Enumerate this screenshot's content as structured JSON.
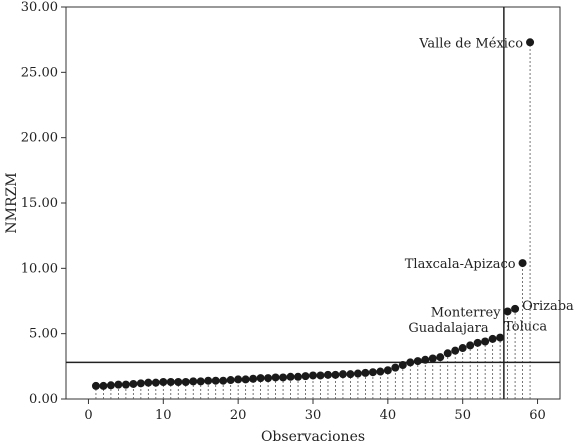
{
  "chart_data": {
    "type": "scatter",
    "subtype": "dot-plot-with-drop-lines",
    "xlabel": "Observaciones",
    "ylabel": "NMRZM",
    "xlim": [
      -3,
      63
    ],
    "ylim": [
      0,
      30
    ],
    "xticks": [
      0,
      10,
      20,
      30,
      40,
      50,
      60
    ],
    "yticks": [
      0,
      5,
      10,
      15,
      20,
      25,
      30
    ],
    "y_tick_labels": [
      "0.00",
      "5.00",
      "10.00",
      "15.00",
      "20.00",
      "25.00",
      "30.00"
    ],
    "x_tick_labels": [
      "0",
      "10",
      "20",
      "30",
      "40",
      "50",
      "60"
    ],
    "grid": false,
    "reference_lines": {
      "horizontal_y": 2.8,
      "vertical_x": 55.5
    },
    "x": [
      1,
      2,
      3,
      4,
      5,
      6,
      7,
      8,
      9,
      10,
      11,
      12,
      13,
      14,
      15,
      16,
      17,
      18,
      19,
      20,
      21,
      22,
      23,
      24,
      25,
      26,
      27,
      28,
      29,
      30,
      31,
      32,
      33,
      34,
      35,
      36,
      37,
      38,
      39,
      40,
      41,
      42,
      43,
      44,
      45,
      46,
      47,
      48,
      49,
      50,
      51,
      52,
      53,
      54,
      55,
      56,
      57,
      58,
      59
    ],
    "values": [
      1.0,
      1.0,
      1.05,
      1.1,
      1.1,
      1.15,
      1.2,
      1.25,
      1.25,
      1.3,
      1.3,
      1.3,
      1.3,
      1.35,
      1.35,
      1.4,
      1.4,
      1.4,
      1.45,
      1.5,
      1.5,
      1.55,
      1.6,
      1.6,
      1.65,
      1.65,
      1.7,
      1.7,
      1.75,
      1.8,
      1.8,
      1.85,
      1.85,
      1.9,
      1.9,
      1.95,
      2.0,
      2.05,
      2.1,
      2.2,
      2.4,
      2.6,
      2.8,
      2.9,
      3.0,
      3.1,
      3.2,
      3.5,
      3.7,
      3.9,
      4.1,
      4.3,
      4.4,
      4.6,
      4.7,
      6.7,
      6.9,
      10.4,
      27.3
    ],
    "annotations": [
      {
        "text": "Valle de México",
        "x": 59,
        "y": 27.3
      },
      {
        "text": "Tlaxcala-Apizaco",
        "x": 58,
        "y": 10.4
      },
      {
        "text": "Monterrey",
        "x": 56,
        "y": 6.7
      },
      {
        "text": "Orizaba",
        "x": 57,
        "y": 6.9
      },
      {
        "text": "Guadalajara",
        "x": 54,
        "y": 4.6
      },
      {
        "text": "Toluca",
        "x": 55,
        "y": 4.7
      }
    ]
  }
}
